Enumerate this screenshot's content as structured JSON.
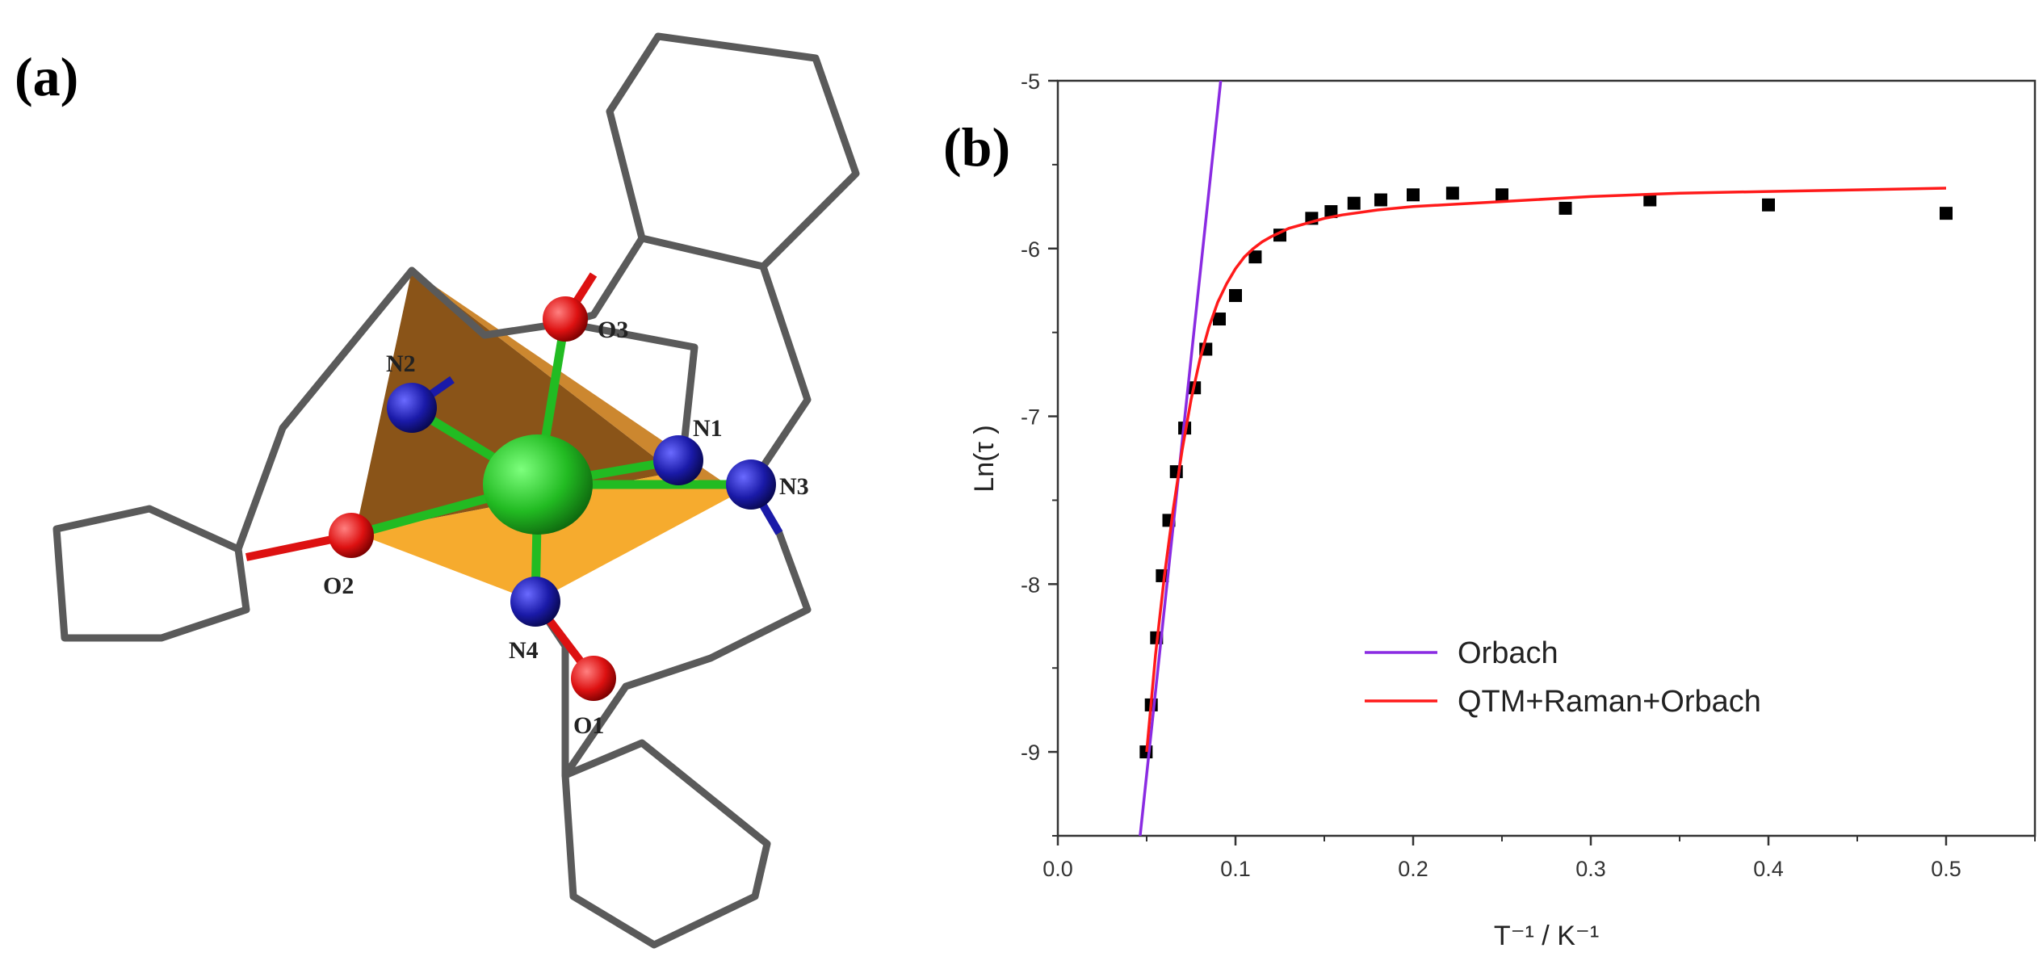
{
  "panels": {
    "a": {
      "label": "(a)"
    },
    "b": {
      "label": "(b)"
    }
  },
  "molecule": {
    "atoms": {
      "O1": "O1",
      "O2": "O2",
      "O3": "O3",
      "N1": "N1",
      "N2": "N2",
      "N3": "N3",
      "N4": "N4"
    },
    "colors": {
      "metal": "#22bb22",
      "nitrogen": "#1a1aa8",
      "oxygen": "#dd1111",
      "polyhedron": "#f5a623",
      "bond": "#5a5a5a"
    }
  },
  "chart_data": {
    "type": "scatter",
    "xlabel": "T⁻¹ / K⁻¹",
    "ylabel": "Ln(τ  )",
    "xlim": [
      0.0,
      0.55
    ],
    "ylim": [
      -9.5,
      -5.0
    ],
    "x_ticks": [
      "0.0",
      "0.1",
      "0.2",
      "0.3",
      "0.4",
      "0.5"
    ],
    "y_ticks": [
      "-5",
      "-6",
      "-7",
      "-8",
      "-9"
    ],
    "x_tick_values": [
      0.0,
      0.1,
      0.2,
      0.3,
      0.4,
      0.5
    ],
    "y_tick_values": [
      -5,
      -6,
      -7,
      -8,
      -9
    ],
    "grid": false,
    "legend_position": "bottom-right",
    "series": [
      {
        "kind": "points",
        "marker": "square",
        "color": "#000000",
        "x": [
          0.0497,
          0.0526,
          0.0556,
          0.0588,
          0.0625,
          0.0667,
          0.0714,
          0.0769,
          0.0833,
          0.0909,
          0.1,
          0.1111,
          0.125,
          0.1429,
          0.1538,
          0.1667,
          0.1818,
          0.2,
          0.2222,
          0.25,
          0.2857,
          0.3333,
          0.4,
          0.5
        ],
        "y": [
          -9.0,
          -8.72,
          -8.32,
          -7.95,
          -7.62,
          -7.33,
          -7.07,
          -6.83,
          -6.6,
          -6.42,
          -6.28,
          -6.05,
          -5.92,
          -5.82,
          -5.78,
          -5.73,
          -5.71,
          -5.68,
          -5.67,
          -5.68,
          -5.76,
          -5.71,
          -5.74,
          -5.79
        ]
      },
      {
        "name": "Orbach",
        "kind": "line",
        "color": "#8a2be2",
        "x": [
          0.0463,
          0.0917
        ],
        "y": [
          -9.5,
          -5.0
        ]
      },
      {
        "name": "QTM+Raman+Orbach",
        "kind": "line",
        "color": "#ff1a1a",
        "x": [
          0.05,
          0.055,
          0.06,
          0.065,
          0.07,
          0.075,
          0.08,
          0.085,
          0.09,
          0.095,
          0.1,
          0.105,
          0.11,
          0.115,
          0.12,
          0.13,
          0.14,
          0.15,
          0.16,
          0.18,
          0.2,
          0.25,
          0.3,
          0.35,
          0.4,
          0.45,
          0.5
        ],
        "y": [
          -9.0,
          -8.42,
          -7.95,
          -7.55,
          -7.2,
          -6.9,
          -6.66,
          -6.47,
          -6.32,
          -6.21,
          -6.12,
          -6.05,
          -6.0,
          -5.96,
          -5.93,
          -5.88,
          -5.85,
          -5.82,
          -5.8,
          -5.77,
          -5.75,
          -5.72,
          -5.69,
          -5.67,
          -5.66,
          -5.65,
          -5.64
        ]
      }
    ]
  }
}
